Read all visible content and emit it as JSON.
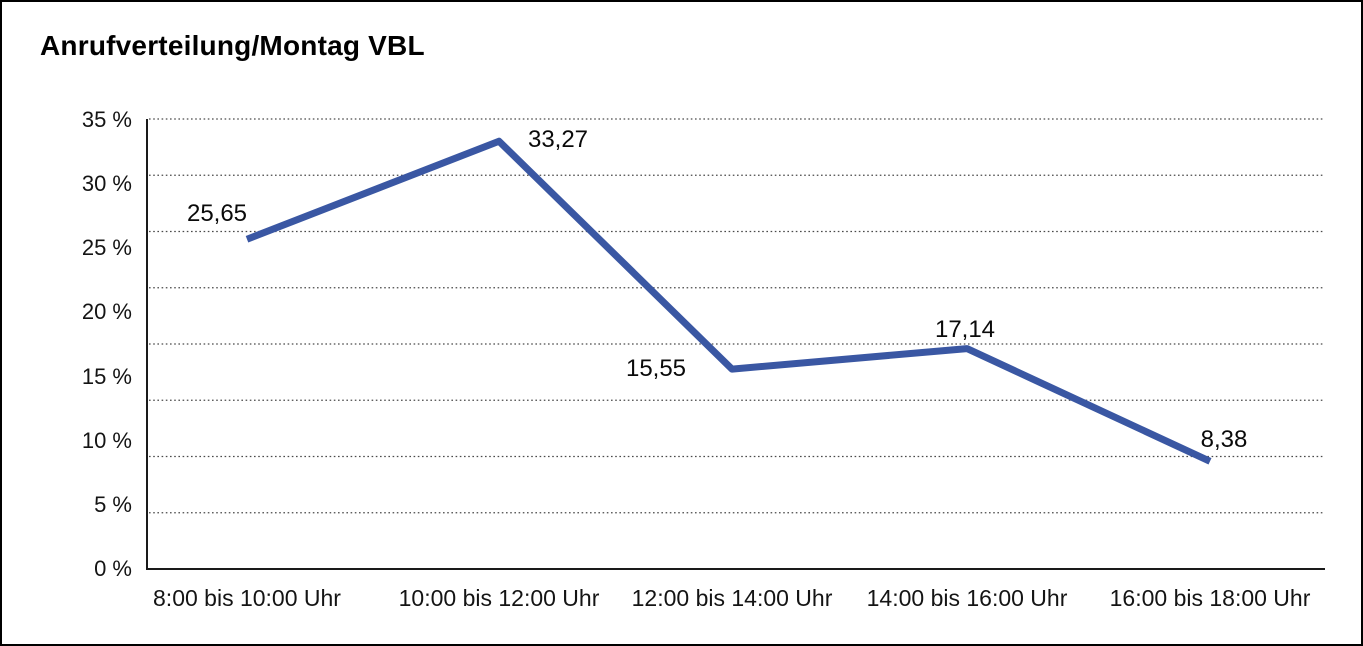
{
  "title": "Anrufverteilung/Montag VBL",
  "chart_data": {
    "type": "line",
    "title": "Anrufverteilung/Montag VBL",
    "categories": [
      "8:00 bis 10:00 Uhr",
      "10:00 bis 12:00 Uhr",
      "12:00 bis 14:00 Uhr",
      "14:00 bis 16:00 Uhr",
      "16:00 bis 18:00 Uhr"
    ],
    "values": [
      25.65,
      33.27,
      15.55,
      17.14,
      8.38
    ],
    "value_labels": [
      "25,65",
      "33,27",
      "15,55",
      "17,14",
      "8,38"
    ],
    "y_tick_labels": [
      "35 %",
      "30 %",
      "25 %",
      "20 %",
      "15 %",
      "10 %",
      "5 %",
      "0 %"
    ],
    "ylim": [
      0,
      35
    ],
    "xlabel": "",
    "ylabel": "",
    "legend": "none",
    "grid": "horizontal dotted lines, 8 equal divisions",
    "line_color": "#3A57A3",
    "axis_color": "#1a1a1a",
    "grid_color": "#4a4a4a"
  }
}
